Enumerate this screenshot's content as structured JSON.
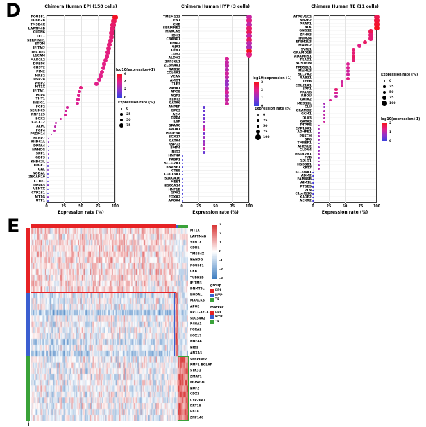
{
  "labels": {
    "d": "D",
    "e": "E",
    "clipped_glyph": "i"
  },
  "colors": {
    "dot_gradient": [
      "#3340e0",
      "#8c33cc",
      "#e0208f",
      "#f5121f"
    ],
    "heatmap_positive": "#d73030",
    "heatmap_negative": "#3f7ec1",
    "group_epi": "#e62225",
    "group_hyp": "#3b5fd0",
    "group_te": "#3aa239"
  },
  "chart_data": [
    {
      "type": "scatter",
      "variant": "dotplot",
      "title": "Chimera Human EPI (158 cells)",
      "xlabel": "Expression rate (%)",
      "xlim": [
        0,
        100
      ],
      "x_ticks": [
        0,
        25,
        50,
        75,
        100
      ],
      "color_scale": {
        "title": "log10(expression+1)",
        "ticks": [
          6,
          4,
          2,
          0
        ],
        "max": 6
      },
      "size_scale": {
        "title": "Expression rate (%)",
        "ticks": [
          0,
          25,
          50,
          75
        ]
      },
      "genes": [
        [
          "POU5F1",
          100,
          5.9
        ],
        [
          "TUBB2B",
          98,
          5.0
        ],
        [
          "TMSB4X",
          97,
          4.7
        ],
        [
          "LAPTM4B",
          96,
          4.6
        ],
        [
          "CLDN6",
          95,
          4.5
        ],
        [
          "TET1",
          94,
          4.5
        ],
        [
          "SERPINH1",
          93,
          4.4
        ],
        [
          "STOM",
          91,
          4.4
        ],
        [
          "IFITM2",
          90,
          4.4
        ],
        [
          "TBC1D3",
          89,
          4.3
        ],
        [
          "L1CAM",
          88,
          4.3
        ],
        [
          "MAD2L2",
          86,
          4.3
        ],
        [
          "DUSP6",
          84,
          4.2
        ],
        [
          "CHST2",
          83,
          4.2
        ],
        [
          "PIM2",
          81,
          4.2
        ],
        [
          "MRS2",
          79,
          4.1
        ],
        [
          "USP28",
          77,
          4.1
        ],
        [
          "WBP2",
          73,
          4.1
        ],
        [
          "MT1X",
          50,
          4.3
        ],
        [
          "IFITM1",
          48,
          4.1
        ],
        [
          "PCP4",
          47,
          4.0
        ],
        [
          "THY1",
          46,
          4.0
        ],
        [
          "INSIG1",
          45,
          3.9
        ],
        [
          "FGF2",
          30,
          3.7
        ],
        [
          "SERINC5",
          28,
          3.7
        ],
        [
          "RNF125",
          27,
          3.8
        ],
        [
          "SOX2",
          21,
          3.6
        ],
        [
          "CXCL12",
          14,
          3.2
        ],
        [
          "ALPL",
          13,
          3.1
        ],
        [
          "FGF4",
          12,
          3.3
        ],
        [
          "PRDM14",
          7,
          2.9
        ],
        [
          "NLRP7",
          3,
          2.3
        ],
        [
          "KHDC1L",
          3,
          2.1
        ],
        [
          "DPPA4",
          3,
          1.3
        ],
        [
          "NANOG",
          3,
          1.1
        ],
        [
          "SPP1",
          3,
          2.1
        ],
        [
          "GDF3",
          3,
          0.9
        ],
        [
          "KHDC3L",
          2,
          2.0
        ],
        [
          "TDGF1",
          2,
          0.9
        ],
        [
          "GAL",
          2,
          1.9
        ],
        [
          "NODAL",
          2,
          0.7
        ],
        [
          "ZSCAN10",
          2,
          0.7
        ],
        [
          "L1TD1",
          2,
          0.6
        ],
        [
          "DPPA5",
          2,
          1.7
        ],
        [
          "VENTX",
          2,
          0.6
        ],
        [
          "CYP2S1",
          2,
          0.5
        ],
        [
          "MT1G",
          2,
          1.9
        ],
        [
          "UTF1",
          2,
          0.4
        ]
      ]
    },
    {
      "type": "scatter",
      "variant": "dotplot",
      "title": "Chimera Human HYP (3 cells)",
      "xlabel": "Expression rate (%)",
      "xlim": [
        0,
        100
      ],
      "x_ticks": [
        0,
        25,
        50,
        75,
        100
      ],
      "color_scale": {
        "title": "log10(expression+1)",
        "ticks": [
          3,
          2,
          1,
          0
        ],
        "max": 3
      },
      "size_scale": {
        "title": "Expression rate (%)",
        "ticks": [
          0,
          25,
          50,
          75,
          100
        ]
      },
      "genes": [
        [
          "TMEM123",
          100,
          1.7
        ],
        [
          "FN1",
          100,
          2.1
        ],
        [
          "CKB",
          100,
          1.6
        ],
        [
          "SERPINE2",
          100,
          2.3
        ],
        [
          "MARCKS",
          100,
          2.5
        ],
        [
          "IDH1",
          100,
          1.7
        ],
        [
          "CRABP1",
          100,
          2.4
        ],
        [
          "TIMP2",
          100,
          1.6
        ],
        [
          "GJA1",
          100,
          1.4
        ],
        [
          "CER1",
          100,
          3.0
        ],
        [
          "CDH2",
          100,
          2.1
        ],
        [
          "ALDH2",
          66.7,
          1.9
        ],
        [
          "ZFP36L1",
          66.7,
          1.7
        ],
        [
          "ZC3HAV1",
          66.7,
          1.6
        ],
        [
          "RAB18",
          66.7,
          1.5
        ],
        [
          "COL4A1",
          66.7,
          1.8
        ],
        [
          "VCAN",
          66.7,
          1.6
        ],
        [
          "AMOT",
          66.7,
          1.2
        ],
        [
          "TLE3",
          66.7,
          1.1
        ],
        [
          "P4HA1",
          66.7,
          1.5
        ],
        [
          "APOE",
          66.7,
          1.9
        ],
        [
          "AQP3",
          66.7,
          1.4
        ],
        [
          "FLRT3",
          66.7,
          1.7
        ],
        [
          "GATA6",
          66.7,
          1.8
        ],
        [
          "ANPEP",
          33.3,
          0.5
        ],
        [
          "GPC3",
          33.3,
          0.6
        ],
        [
          "A2M",
          33.3,
          0.6
        ],
        [
          "DPP4",
          33.3,
          0.7
        ],
        [
          "IL6R",
          33.3,
          1.1
        ],
        [
          "SPARC",
          33.3,
          1.3
        ],
        [
          "APOA1",
          33.3,
          2.0
        ],
        [
          "PDGFRA",
          33.3,
          0.7
        ],
        [
          "SOX17",
          33.3,
          1.2
        ],
        [
          "GATA4",
          33.3,
          1.1
        ],
        [
          "RSPO3",
          33.3,
          1.3
        ],
        [
          "BMP4",
          33.3,
          1.7
        ],
        [
          "NID2",
          33.3,
          0.6
        ],
        [
          "HNF4A",
          1,
          0.2
        ],
        [
          "FABP1",
          1,
          0.2
        ],
        [
          "SLCO2A1",
          1,
          0.2
        ],
        [
          "RNASE1",
          1,
          0.2
        ],
        [
          "CTSE",
          1,
          0.2
        ],
        [
          "COL13A1",
          1,
          0.2
        ],
        [
          "S100A16",
          1,
          0.2
        ],
        [
          "MEST",
          1,
          0.2
        ],
        [
          "S100A14",
          1,
          0.2
        ],
        [
          "HNF1B",
          1,
          0.2
        ],
        [
          "GPX2",
          1,
          0.2
        ],
        [
          "FOXA2",
          1,
          0.2
        ],
        [
          "APOA4",
          1,
          0.2
        ]
      ]
    },
    {
      "type": "scatter",
      "variant": "dotplot",
      "title": "Chimera Human TE (11 cells)",
      "xlabel": "Expression rate (%)",
      "xlim": [
        0,
        100
      ],
      "x_ticks": [
        0,
        25,
        50,
        75,
        100
      ],
      "color_scale": {
        "title": "log10(expression+1)",
        "ticks": [
          2,
          1,
          0
        ],
        "max": 2
      },
      "size_scale": {
        "title": "Expression rate (%)",
        "ticks": [
          0,
          25,
          50,
          75,
          100
        ]
      },
      "genes": [
        [
          "ATP6V1C2",
          100,
          1.7
        ],
        [
          "NR2F2",
          100,
          1.8
        ],
        [
          "PRAP1",
          100,
          1.9
        ],
        [
          "NLK",
          100,
          2.0
        ],
        [
          "GNG12",
          90.9,
          1.7
        ],
        [
          "ZFHX3",
          90.9,
          1.5
        ],
        [
          "TRIM24",
          90.9,
          1.5
        ],
        [
          "EPB41L3",
          81.8,
          1.6
        ],
        [
          "MAML2",
          72.7,
          1.4
        ],
        [
          "SYNJ1",
          63.6,
          1.5
        ],
        [
          "GRAMD1B",
          63.6,
          1.5
        ],
        [
          "ADAMTS1",
          63.6,
          1.6
        ],
        [
          "TEAD1",
          63.6,
          1.5
        ],
        [
          "NOSTRIN",
          54.5,
          1.3
        ],
        [
          "TPD52L1",
          54.5,
          1.3
        ],
        [
          "MAML3",
          54.5,
          1.2
        ],
        [
          "SLC7A2",
          54.5,
          1.2
        ],
        [
          "RAB31",
          54.5,
          1.4
        ],
        [
          "TFEB",
          45.5,
          1.2
        ],
        [
          "COL21A1",
          45.5,
          1.3
        ],
        [
          "SPP1",
          36.4,
          1.5
        ],
        [
          "PPARG",
          36.4,
          1.3
        ],
        [
          "RHOU",
          36.4,
          1.1
        ],
        [
          "GATA2",
          27.3,
          1.3
        ],
        [
          "MED12L",
          18.2,
          0.9
        ],
        [
          "CLU",
          18.2,
          0.7
        ],
        [
          "GRAMD2",
          18.2,
          1.0
        ],
        [
          "GCM1",
          18.2,
          1.1
        ],
        [
          "DLX3",
          18.2,
          1.0
        ],
        [
          "GATA3",
          18.2,
          1.2
        ],
        [
          "PTPRE",
          9.1,
          0.9
        ],
        [
          "CYP19A1",
          9.1,
          0.9
        ],
        [
          "ADHFE1",
          9.1,
          0.8
        ],
        [
          "PRKCH",
          9.1,
          0.9
        ],
        [
          "SP6",
          9.1,
          0.8
        ],
        [
          "TM4SF1",
          9.1,
          0.6
        ],
        [
          "AHCYL2",
          9.1,
          0.7
        ],
        [
          "CLDN4",
          9.1,
          0.8
        ],
        [
          "HSD17B1",
          9.1,
          0.9
        ],
        [
          "FYB",
          9.1,
          0.7
        ],
        [
          "GPLD1",
          9.1,
          0.9
        ],
        [
          "HSD3B1",
          9.1,
          0.8
        ],
        [
          "KRT7",
          9.1,
          1.0
        ],
        [
          "SLCO4A1",
          0.5,
          0.15
        ],
        [
          "ADM2",
          0.5,
          0.15
        ],
        [
          "FAM46B",
          0.5,
          0.15
        ],
        [
          "AIM1L",
          0.5,
          0.15
        ],
        [
          "PTGES",
          0.5,
          0.15
        ],
        [
          "PTN",
          0.5,
          0.15
        ],
        [
          "C1orf116",
          0.5,
          0.15
        ],
        [
          "XAGE2",
          0.5,
          0.15
        ],
        [
          "ACKR2",
          0.5,
          0.15
        ]
      ]
    },
    {
      "type": "heatmap",
      "title": "",
      "row_labels": [
        "MT1X",
        "LAPTM4B",
        "VENTX",
        "CDH1",
        "TMSB4X",
        "NANOG",
        "POU5F1",
        "CKB",
        "TUBB2B",
        "IFITM3",
        "DNMT3L",
        "NODAL",
        "MARCKS",
        "APOE",
        "RP11-37C11.1",
        "SLC34A2",
        "P4HA1",
        "FOXA2",
        "SOX17",
        "HNF4A",
        "NID2",
        "ANXA3",
        "SERPINE2",
        "PMF1-BGLAP",
        "STK31",
        "ZMAT1",
        "MOSPD1",
        "NUF2",
        "CDX2",
        "CYP26A1",
        "KRT18",
        "KRT8",
        "ZNF146"
      ],
      "row_groups": [
        {
          "name": "EPI",
          "color": "#e62225",
          "count": 11
        },
        {
          "name": "HYP",
          "color": "#3b5fd0",
          "count": 11
        },
        {
          "name": "TE",
          "color": "#3aa239",
          "count": 11
        }
      ],
      "col_groups": [
        {
          "name": "EPI",
          "color": "#e62225",
          "cells": 158
        },
        {
          "name": "HYP",
          "color": "#3b5fd0",
          "cells": 3
        },
        {
          "name": "TE",
          "color": "#3aa239",
          "cells": 11
        }
      ],
      "colorbar_ticks": [
        3,
        2,
        1,
        0,
        -1,
        -2,
        -3
      ],
      "value_range": [
        -3,
        3
      ],
      "legends": [
        {
          "title": "group",
          "entries": [
            "EPI",
            "HYP",
            "TE"
          ]
        },
        {
          "title": "marker",
          "entries": [
            "EPI",
            "HYP",
            "TE"
          ]
        }
      ],
      "noise_seed": 42,
      "same_group_boost": 2.4,
      "epi_self_boost": 0.45,
      "row_bias": [
        0,
        0,
        0,
        0,
        0,
        0,
        0,
        0,
        0,
        0,
        0,
        -0.3,
        0,
        0,
        -1.0,
        0,
        0,
        0,
        0,
        -0.6,
        0,
        -0.7,
        0,
        0,
        0,
        0,
        0,
        0,
        0,
        0,
        0,
        0,
        0
      ]
    }
  ]
}
